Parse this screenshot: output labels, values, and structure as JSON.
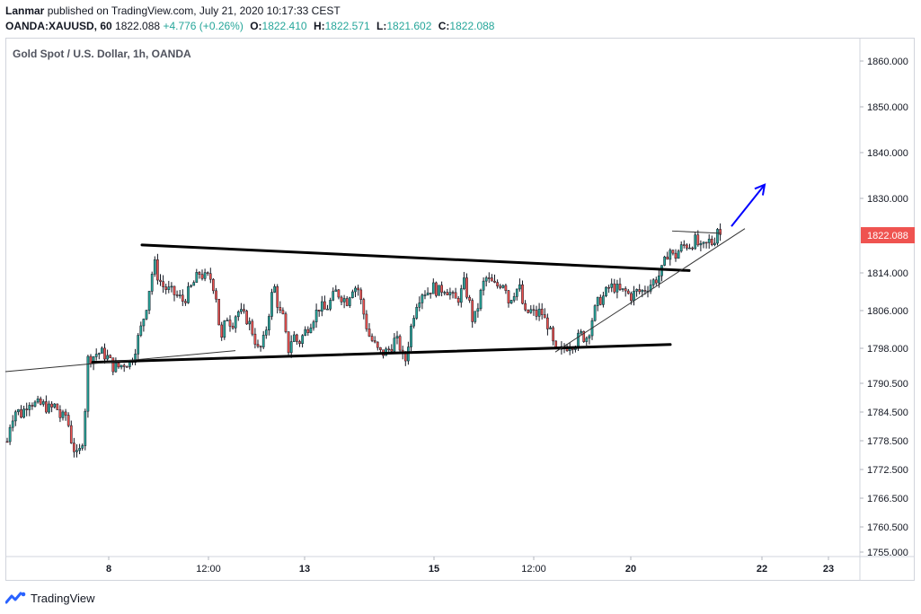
{
  "header": {
    "author": "Lanmar",
    "published_text": "published on TradingView.com, July 21, 2020 10:17:33 CEST",
    "symbol": "OANDA:XAUUSD, 60",
    "last": "1822.088",
    "change": "+4.776 (+0.26%)",
    "o_label": "O:",
    "o_value": "1822.410",
    "h_label": "H:",
    "h_value": "1822.571",
    "l_label": "L:",
    "l_value": "1821.602",
    "c_label": "C:",
    "c_value": "1822.088"
  },
  "footer": {
    "brand": "TradingView"
  },
  "colors": {
    "up": "#26a69a",
    "candle_up": "#26a69a",
    "candle_down": "#ef5350",
    "price_badge": "#ef5350",
    "arrow": "#0000ff",
    "trendline": "#000000"
  },
  "chart_data": {
    "type": "candlestick",
    "title": "Gold Spot / U.S. Dollar, 1h, OANDA",
    "y_ticks": [
      "1860.000",
      "1850.000",
      "1840.000",
      "1830.000",
      "1814.000",
      "1806.000",
      "1798.000",
      "1790.500",
      "1784.500",
      "1778.500",
      "1772.500",
      "1766.500",
      "1760.500",
      "1755.000"
    ],
    "x_ticks": [
      "8",
      "12:00",
      "13",
      "15",
      "12:00",
      "20",
      "22",
      "23"
    ],
    "last_price_label": "1822.088",
    "ylim": [
      1755,
      1860
    ],
    "grid": false,
    "price_path": [
      [
        0,
        1778
      ],
      [
        6,
        1776
      ],
      [
        12,
        1783
      ],
      [
        18,
        1785
      ],
      [
        24,
        1784
      ],
      [
        32,
        1787
      ],
      [
        40,
        1786
      ],
      [
        48,
        1786
      ],
      [
        56,
        1785
      ],
      [
        62,
        1786
      ],
      [
        68,
        1783
      ],
      [
        74,
        1784
      ],
      [
        80,
        1778
      ],
      [
        86,
        1775
      ],
      [
        90,
        1777
      ],
      [
        93,
        1780
      ],
      [
        96,
        1789
      ],
      [
        98,
        1796
      ],
      [
        102,
        1796
      ],
      [
        108,
        1797
      ],
      [
        114,
        1797
      ],
      [
        120,
        1796
      ],
      [
        126,
        1794
      ],
      [
        132,
        1794
      ],
      [
        140,
        1795
      ],
      [
        146,
        1795
      ],
      [
        152,
        1799
      ],
      [
        158,
        1803
      ],
      [
        164,
        1808
      ],
      [
        168,
        1813
      ],
      [
        172,
        1816
      ],
      [
        176,
        1813
      ],
      [
        182,
        1811
      ],
      [
        190,
        1810
      ],
      [
        198,
        1809
      ],
      [
        204,
        1808
      ],
      [
        210,
        1810
      ],
      [
        216,
        1812
      ],
      [
        222,
        1814
      ],
      [
        228,
        1813
      ],
      [
        234,
        1813
      ],
      [
        240,
        1810
      ],
      [
        246,
        1799
      ],
      [
        252,
        1805
      ],
      [
        258,
        1803
      ],
      [
        264,
        1806
      ],
      [
        270,
        1805
      ],
      [
        276,
        1804
      ],
      [
        282,
        1801
      ],
      [
        288,
        1797
      ],
      [
        294,
        1800
      ],
      [
        298,
        1804
      ],
      [
        302,
        1809
      ],
      [
        306,
        1811
      ],
      [
        310,
        1806
      ],
      [
        316,
        1804
      ],
      [
        320,
        1797
      ],
      [
        326,
        1801
      ],
      [
        332,
        1799
      ],
      [
        338,
        1801
      ],
      [
        344,
        1803
      ],
      [
        350,
        1805
      ],
      [
        356,
        1807
      ],
      [
        362,
        1806
      ],
      [
        368,
        1808
      ],
      [
        374,
        1810
      ],
      [
        380,
        1809
      ],
      [
        386,
        1808
      ],
      [
        392,
        1811
      ],
      [
        398,
        1811
      ],
      [
        404,
        1806
      ],
      [
        410,
        1801
      ],
      [
        416,
        1799
      ],
      [
        422,
        1797
      ],
      [
        428,
        1797
      ],
      [
        434,
        1798
      ],
      [
        440,
        1800
      ],
      [
        446,
        1798
      ],
      [
        450,
        1794
      ],
      [
        456,
        1801
      ],
      [
        460,
        1805
      ],
      [
        464,
        1808
      ],
      [
        470,
        1810
      ],
      [
        476,
        1810
      ],
      [
        482,
        1811
      ],
      [
        488,
        1810
      ],
      [
        494,
        1811
      ],
      [
        500,
        1810
      ],
      [
        506,
        1808
      ],
      [
        512,
        1809
      ],
      [
        516,
        1812
      ],
      [
        522,
        1808
      ],
      [
        526,
        1804
      ],
      [
        530,
        1805
      ],
      [
        534,
        1809
      ],
      [
        540,
        1813
      ],
      [
        546,
        1812
      ],
      [
        552,
        1811
      ],
      [
        558,
        1812
      ],
      [
        562,
        1812
      ],
      [
        566,
        1808
      ],
      [
        572,
        1810
      ],
      [
        578,
        1811
      ],
      [
        584,
        1805
      ],
      [
        590,
        1806
      ],
      [
        596,
        1805
      ],
      [
        602,
        1806
      ],
      [
        606,
        1804
      ],
      [
        610,
        1803
      ],
      [
        614,
        1800
      ],
      [
        618,
        1797
      ],
      [
        622,
        1797
      ],
      [
        628,
        1798
      ],
      [
        634,
        1799
      ],
      [
        640,
        1799
      ],
      [
        646,
        1801
      ],
      [
        652,
        1800
      ],
      [
        656,
        1802
      ],
      [
        660,
        1805
      ],
      [
        666,
        1808
      ],
      [
        672,
        1809
      ],
      [
        678,
        1811
      ],
      [
        684,
        1811
      ],
      [
        690,
        1810
      ],
      [
        696,
        1810
      ],
      [
        702,
        1809
      ],
      [
        708,
        1810
      ],
      [
        714,
        1810
      ],
      [
        720,
        1811
      ],
      [
        726,
        1812
      ],
      [
        732,
        1813
      ],
      [
        738,
        1815
      ],
      [
        742,
        1818
      ],
      [
        746,
        1819
      ],
      [
        750,
        1817
      ],
      [
        756,
        1819
      ],
      [
        762,
        1820
      ],
      [
        768,
        1820
      ],
      [
        774,
        1821
      ],
      [
        780,
        1819
      ],
      [
        786,
        1820
      ],
      [
        790,
        1821
      ],
      [
        794,
        1820
      ],
      [
        798,
        1824
      ],
      [
        802,
        1822
      ]
    ],
    "drawings": [
      {
        "type": "trend_line",
        "from": [
          158,
          1820
        ],
        "to": [
          767,
          1814.5
        ]
      },
      {
        "type": "trend_line",
        "from": [
          103,
          1795
        ],
        "to": [
          746,
          1798.8
        ]
      },
      {
        "type": "thin_line",
        "from": [
          6,
          1793
        ],
        "to": [
          262,
          1797.5
        ]
      },
      {
        "type": "thin_line",
        "from": [
          618,
          1797.2
        ],
        "to": [
          829,
          1823.5
        ]
      },
      {
        "type": "thin_line",
        "from": [
          748,
          1823
        ],
        "to": [
          802,
          1822.5
        ]
      },
      {
        "type": "arrow",
        "from": [
          814,
          1824
        ],
        "to": [
          851,
          1833
        ]
      }
    ]
  }
}
